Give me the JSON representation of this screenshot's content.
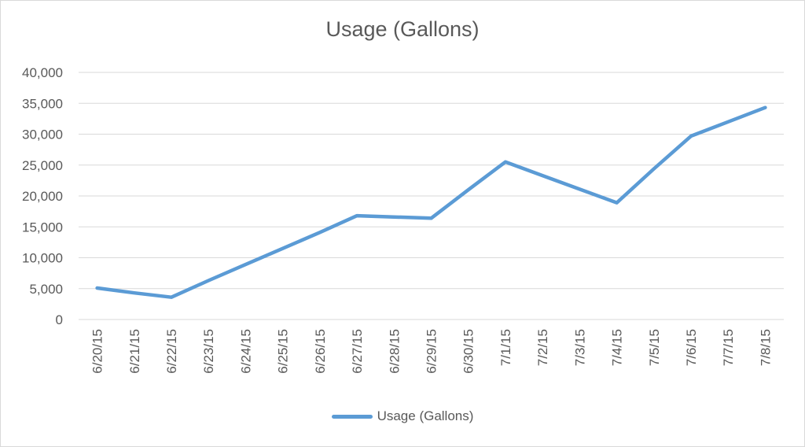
{
  "chart_data": {
    "type": "line",
    "title": "Usage (Gallons)",
    "xlabel": "",
    "ylabel": "",
    "categories": [
      "6/20/15",
      "6/21/15",
      "6/22/15",
      "6/23/15",
      "6/24/15",
      "6/25/15",
      "6/26/15",
      "6/27/15",
      "6/28/15",
      "6/29/15",
      "6/30/15",
      "7/1/15",
      "7/2/15",
      "7/3/15",
      "7/4/15",
      "7/5/15",
      "7/6/15",
      "7/7/15",
      "7/8/15"
    ],
    "series": [
      {
        "name": "Usage (Gallons)",
        "color": "#5b9bd5",
        "values": [
          5100,
          4300,
          3600,
          6300,
          8900,
          11500,
          14100,
          16800,
          16600,
          16400,
          21000,
          25500,
          23300,
          21100,
          18900,
          24400,
          29700,
          32000,
          34300
        ]
      }
    ],
    "ylim": [
      0,
      40000
    ],
    "yticks": [
      0,
      5000,
      10000,
      15000,
      20000,
      25000,
      30000,
      35000,
      40000
    ],
    "ytick_labels": [
      "0",
      "5,000",
      "10,000",
      "15,000",
      "20,000",
      "25,000",
      "30,000",
      "35,000",
      "40,000"
    ],
    "grid": true,
    "legend_position": "bottom",
    "gridline_color": "#d9d9d9",
    "text_color": "#595959"
  }
}
